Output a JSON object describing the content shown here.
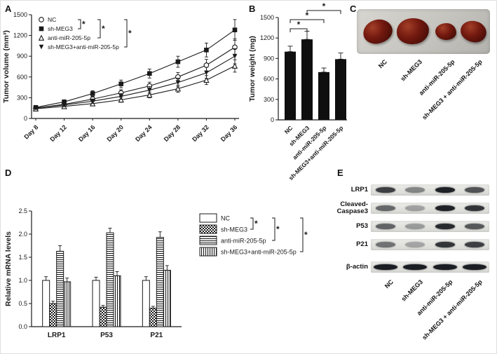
{
  "figure": {
    "panel_labels": {
      "a": "A",
      "b": "B",
      "c": "C",
      "d": "D",
      "e": "E"
    }
  },
  "groups": [
    "NC",
    "sh-MEG3",
    "anti-miR-205-5p",
    "sh-MEG3+anti-miR-205-5p"
  ],
  "chart_data": [
    {
      "id": "A",
      "type": "line",
      "ylabel": "Tumor volume (mm³)",
      "x_labels": [
        "Day 8",
        "Day 12",
        "Day 16",
        "Day 20",
        "Day 24",
        "Day 28",
        "Day 32",
        "Day 36"
      ],
      "ylim": [
        0,
        1500
      ],
      "yticks": [
        "0",
        "300",
        "600",
        "900",
        "1200",
        "1500"
      ],
      "series": [
        {
          "name": "NC",
          "marker": "circle-open",
          "values": [
            150,
            205,
            280,
            370,
            470,
            600,
            770,
            1030
          ],
          "errors": [
            20,
            25,
            35,
            45,
            55,
            65,
            85,
            120
          ]
        },
        {
          "name": "sh-MEG3",
          "marker": "square-filled",
          "values": [
            160,
            240,
            360,
            500,
            650,
            820,
            990,
            1280
          ],
          "errors": [
            20,
            30,
            40,
            55,
            65,
            80,
            100,
            150
          ]
        },
        {
          "name": "anti-miR-205-5p",
          "marker": "triangle-open",
          "values": [
            140,
            175,
            215,
            270,
            340,
            430,
            555,
            760
          ],
          "errors": [
            15,
            20,
            28,
            35,
            42,
            52,
            65,
            90
          ]
        },
        {
          "name": "sh-MEG3+anti-miR-205-5p",
          "marker": "triangle-down-filled",
          "values": [
            150,
            195,
            250,
            320,
            410,
            520,
            660,
            900
          ],
          "errors": [
            18,
            24,
            32,
            42,
            52,
            62,
            80,
            110
          ]
        }
      ],
      "legend_significance": [
        {
          "from": 0,
          "to": 1,
          "label": "*"
        },
        {
          "from": 0,
          "to": 2,
          "label": "*"
        },
        {
          "from": 0,
          "to": 3,
          "label": "*"
        }
      ]
    },
    {
      "id": "B",
      "type": "bar",
      "ylabel": "Tumor weight (mg)",
      "categories": [
        "NC",
        "sh-MEG3",
        "anti-miR-205-5p",
        "sh-MEG3+anti-miR-205-5p"
      ],
      "values": [
        1000,
        1180,
        700,
        890
      ],
      "errors": [
        80,
        120,
        60,
        90
      ],
      "ylim": [
        0,
        1500
      ],
      "yticks": [
        "0",
        "300",
        "600",
        "900",
        "1200",
        "1500"
      ],
      "sig_brackets": [
        {
          "from": 0,
          "to": 1,
          "label": "*",
          "level": 0
        },
        {
          "from": 0,
          "to": 2,
          "label": "*",
          "level": 1
        },
        {
          "from": 1,
          "to": 3,
          "label": "*",
          "level": 2
        }
      ]
    },
    {
      "id": "D",
      "type": "grouped-bar",
      "ylabel": "Relative mRNA levels",
      "categories": [
        "LRP1",
        "P53",
        "P21"
      ],
      "ylim": [
        0,
        2.5
      ],
      "yticks": [
        "0.0",
        "0.5",
        "1.0",
        "1.5",
        "2.0",
        "2.5"
      ],
      "series": [
        {
          "name": "NC",
          "pattern": "plain",
          "values": [
            1.0,
            1.0,
            1.0
          ],
          "errors": [
            0.08,
            0.07,
            0.08
          ]
        },
        {
          "name": "sh-MEG3",
          "pattern": "checker",
          "values": [
            0.5,
            0.42,
            0.4
          ],
          "errors": [
            0.05,
            0.04,
            0.04
          ]
        },
        {
          "name": "anti-miR-205-5p",
          "pattern": "hlines",
          "values": [
            1.63,
            2.03,
            1.93
          ],
          "errors": [
            0.12,
            0.1,
            0.12
          ]
        },
        {
          "name": "sh-MEG3+anti-miR-205-5p",
          "pattern": "vlines",
          "values": [
            0.97,
            1.1,
            1.22
          ],
          "errors": [
            0.08,
            0.09,
            0.1
          ]
        }
      ],
      "legend_significance": [
        {
          "from": 0,
          "to": 1,
          "label": "*"
        },
        {
          "from": 0,
          "to": 2,
          "label": "*"
        },
        {
          "from": 0,
          "to": 3,
          "label": "*"
        }
      ]
    }
  ],
  "photo_panel": {
    "labels": [
      "NC",
      "sh-MEG3",
      "anti-miR-205-5p",
      "sh-MEG3 + anti-miR-205-5p"
    ],
    "tumors": [
      {
        "group": "NC",
        "relative_size": 1.0
      },
      {
        "group": "sh-MEG3",
        "relative_size": 1.1
      },
      {
        "group": "anti-miR-205-5p",
        "relative_size": 0.72
      },
      {
        "group": "sh-MEG3 + anti-miR-205-5p",
        "relative_size": 0.88
      }
    ]
  },
  "blot_panel": {
    "rows": [
      {
        "label": "LRP1",
        "label_lines": [
          "LRP1"
        ],
        "intensities": [
          0.8,
          0.45,
          0.95,
          0.7
        ]
      },
      {
        "label": "Cleaved-Caspase3",
        "label_lines": [
          "Cleaved-",
          "Caspase3"
        ],
        "intensities": [
          0.6,
          0.32,
          0.95,
          0.85
        ]
      },
      {
        "label": "P53",
        "label_lines": [
          "P53"
        ],
        "intensities": [
          0.62,
          0.35,
          0.9,
          0.68
        ]
      },
      {
        "label": "P21",
        "label_lines": [
          "P21"
        ],
        "intensities": [
          0.55,
          0.3,
          0.85,
          0.8
        ]
      },
      {
        "label": "β-actin",
        "label_lines": [
          "β-actin"
        ],
        "intensities": [
          0.97,
          0.97,
          0.97,
          0.97
        ]
      }
    ],
    "col_labels": [
      "NC",
      "sh-MEG3",
      "anti-miR-205-5p",
      "sh-MEG3 + anti-miR-205-5p"
    ]
  },
  "colors": {
    "ink": "#1a1a1a",
    "bar_fill": "#0f0f0f",
    "photo_bg": "#c9c6c0",
    "tumor_dark": "#4a0e0c"
  }
}
